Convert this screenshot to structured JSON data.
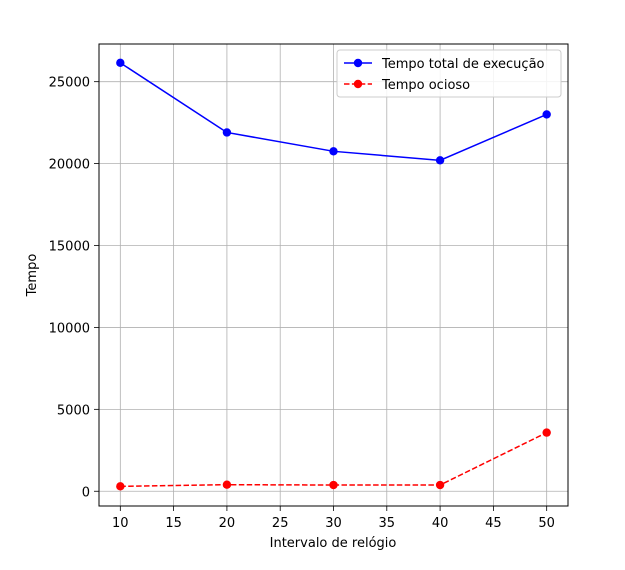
{
  "chart_data": {
    "type": "line",
    "title": "",
    "xlabel": "Intervalo de relógio",
    "ylabel": "Tempo",
    "x": [
      10,
      20,
      30,
      40,
      50
    ],
    "xlim": [
      8,
      52
    ],
    "ylim": [
      -900,
      27300
    ],
    "xticks": [
      10,
      15,
      20,
      25,
      30,
      35,
      40,
      45,
      50
    ],
    "yticks": [
      0,
      5000,
      10000,
      15000,
      20000,
      25000
    ],
    "grid": true,
    "legend_position": "top-right",
    "series": [
      {
        "name": "Tempo total de execução",
        "values": [
          26150,
          21900,
          20750,
          20200,
          23000
        ],
        "color": "#0000ff",
        "line_style": "solid",
        "marker": "circle"
      },
      {
        "name": "Tempo ocioso",
        "values": [
          300,
          400,
          380,
          380,
          3580
        ],
        "color": "#ff0000",
        "line_style": "dashed",
        "marker": "circle"
      }
    ]
  }
}
